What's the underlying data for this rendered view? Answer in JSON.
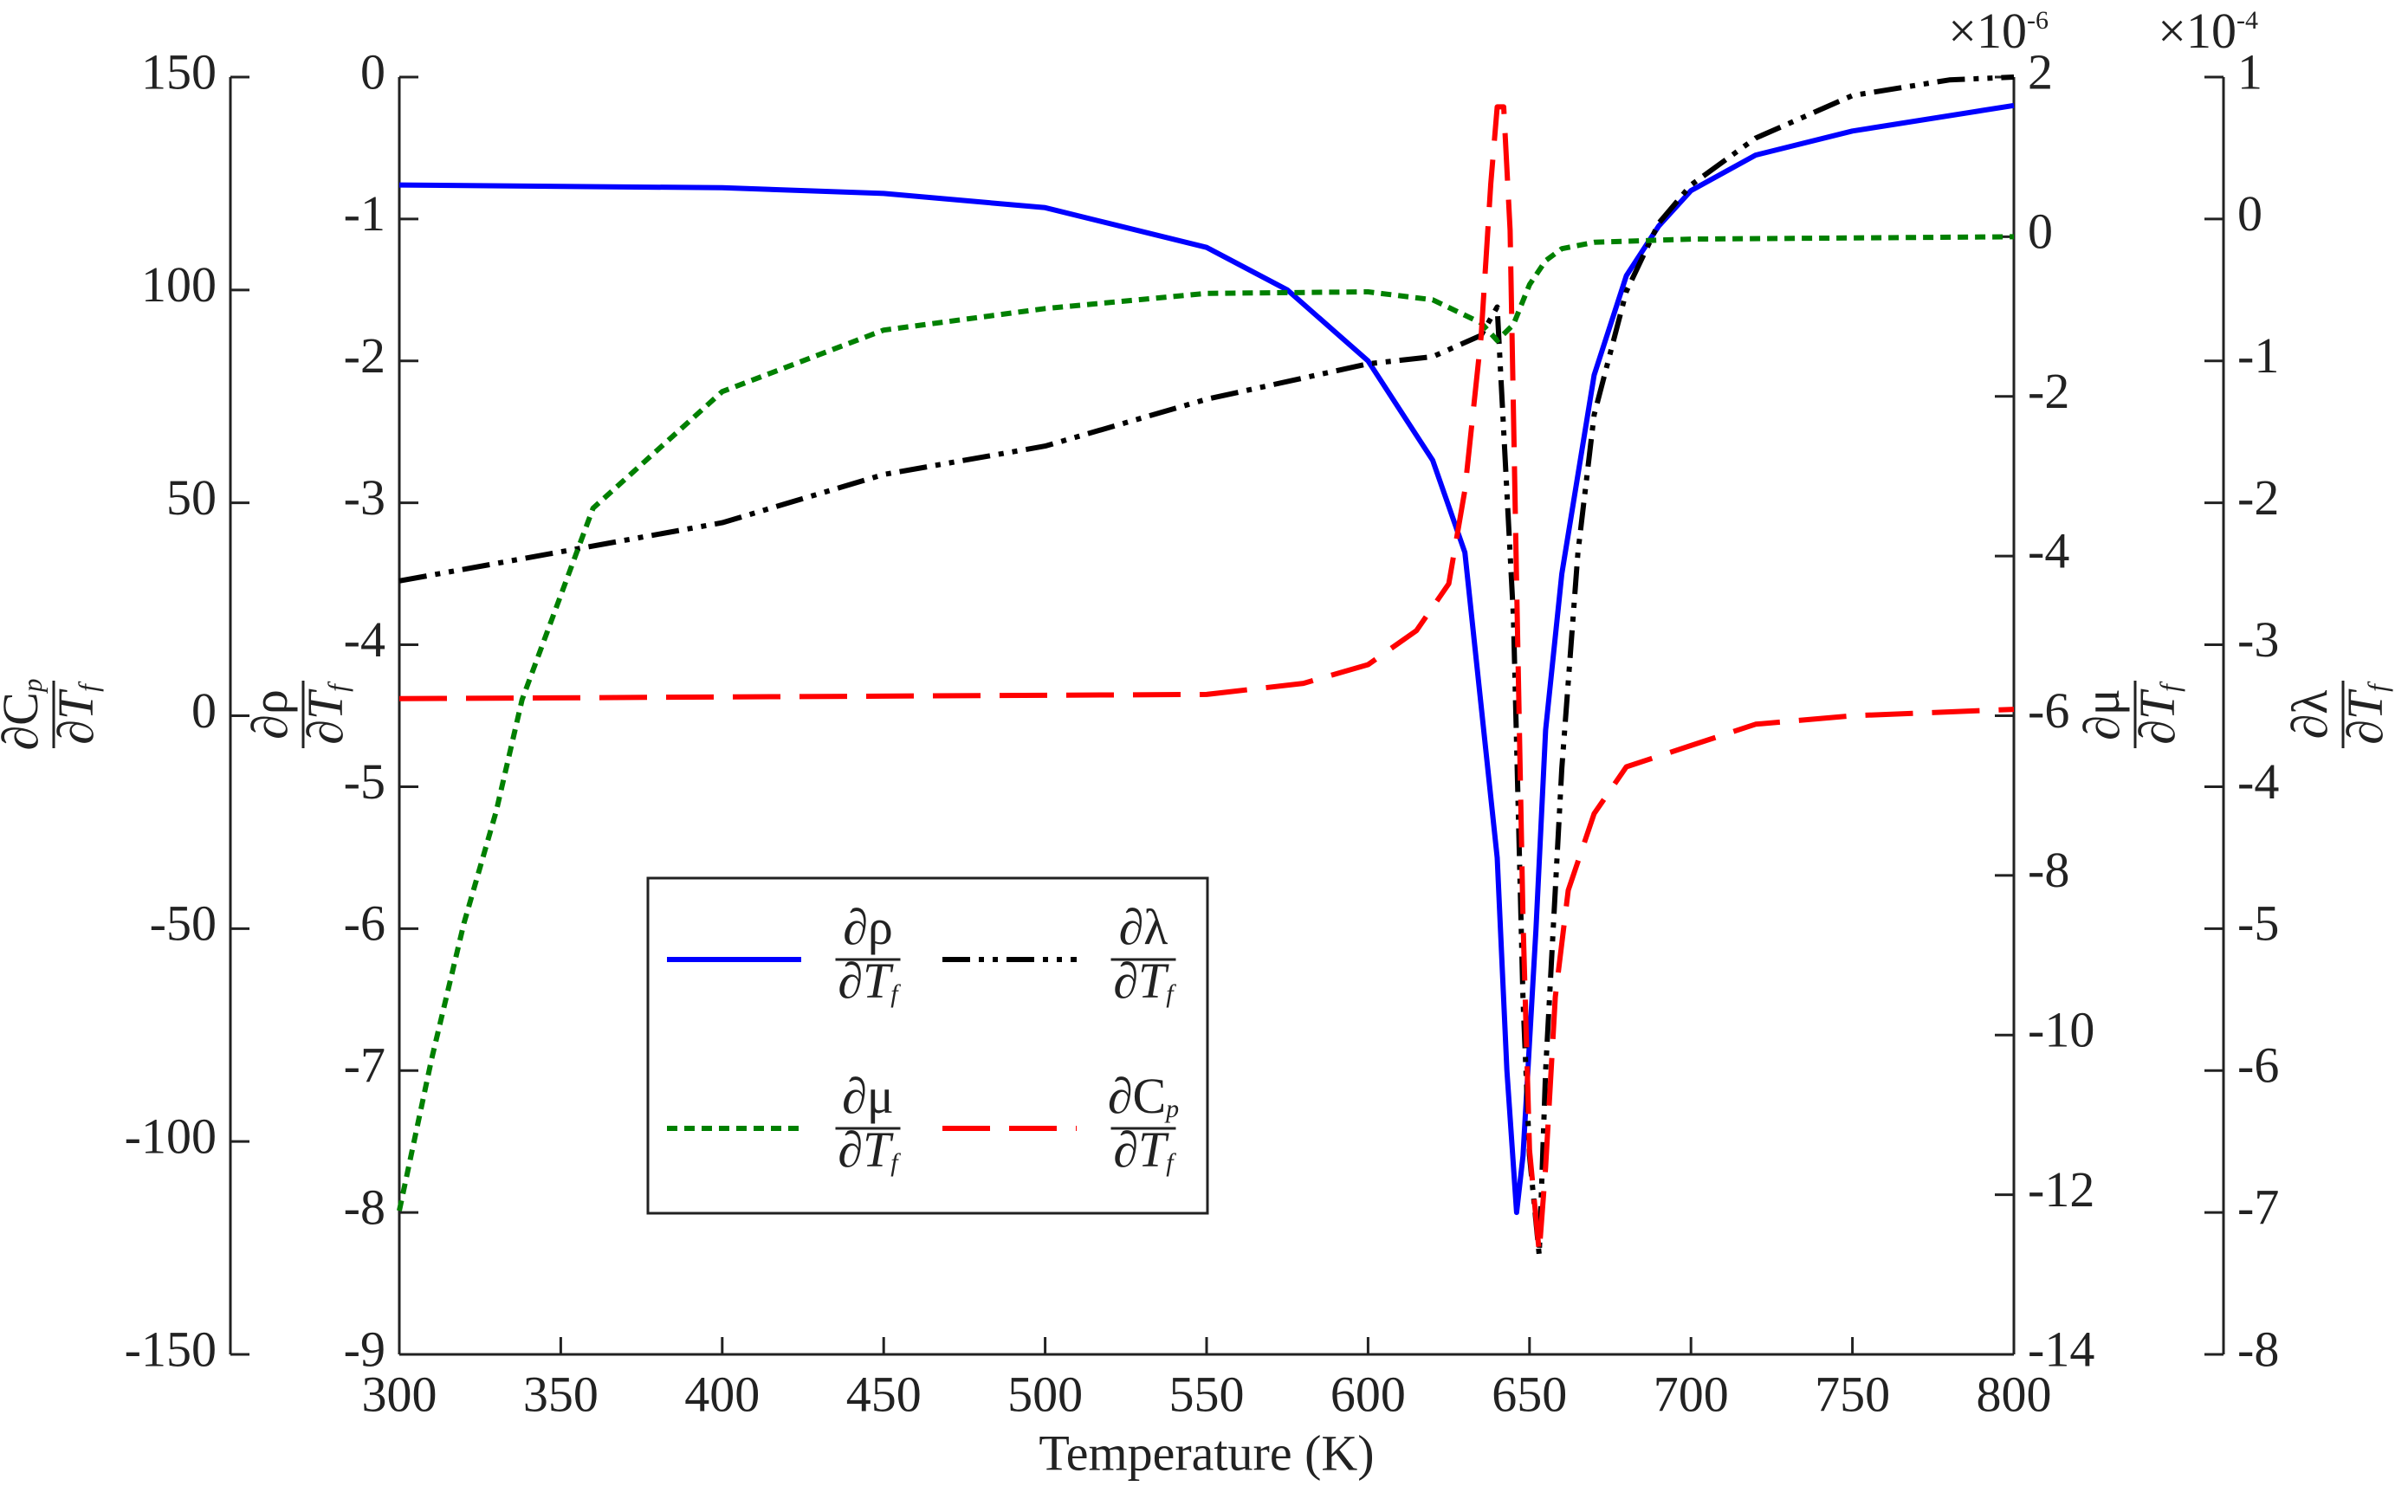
{
  "chart_data": {
    "type": "line",
    "xlabel": "Temperature (K)",
    "xlim": [
      300,
      800
    ],
    "xticks": [
      300,
      350,
      400,
      450,
      500,
      550,
      600,
      650,
      700,
      750,
      800
    ],
    "ylim": [
      -9,
      0
    ],
    "yticks": [
      -9,
      -8,
      -7,
      -6,
      -5,
      -4,
      -3,
      -2,
      -1,
      0
    ],
    "ylabel": {
      "num": "∂ρ",
      "den": "∂T",
      "den_sub": "f"
    },
    "y2lim": [
      -150,
      150
    ],
    "y2ticks": [
      -150,
      -100,
      -50,
      0,
      50,
      100,
      150
    ],
    "y2label": {
      "num": "∂C",
      "num_sub": "p",
      "den": "∂T",
      "den_sub": "f"
    },
    "y3lim": [
      -14,
      2
    ],
    "y3ticks": [
      -14,
      -12,
      -10,
      -8,
      -6,
      -4,
      -2,
      0,
      2
    ],
    "y3label": {
      "num": "∂μ",
      "den": "∂T",
      "den_sub": "f"
    },
    "y3multiplier": {
      "base": "×10",
      "exponent": "-6"
    },
    "y4lim": [
      -8,
      1
    ],
    "y4ticks": [
      -8,
      -7,
      -6,
      -5,
      -4,
      -3,
      -2,
      -1,
      0,
      1
    ],
    "y4label": {
      "num": "∂λ",
      "den": "∂T",
      "den_sub": "f"
    },
    "y4multiplier": {
      "base": "×10",
      "exponent": "-4"
    },
    "series": [
      {
        "name": {
          "num": "∂ρ",
          "den": "∂T",
          "den_sub": "f"
        },
        "color": "#0000ff",
        "dash": "solid",
        "axis": "y",
        "x": [
          300,
          400,
          450,
          500,
          550,
          575,
          600,
          620,
          630,
          640,
          643,
          646,
          648,
          650,
          652,
          655,
          660,
          670,
          680,
          690,
          700,
          720,
          750,
          800
        ],
        "values": [
          -0.76,
          -0.78,
          -0.82,
          -0.92,
          -1.2,
          -1.5,
          -2.0,
          -2.7,
          -3.35,
          -5.5,
          -7.0,
          -8.0,
          -7.6,
          -6.8,
          -6.0,
          -4.6,
          -3.5,
          -2.1,
          -1.4,
          -1.05,
          -0.8,
          -0.55,
          -0.38,
          -0.2
        ]
      },
      {
        "name": {
          "num": "∂λ",
          "den": "∂T",
          "den_sub": "f"
        },
        "color": "#000000",
        "dash": "dashdot",
        "axis": "y4",
        "x": [
          300,
          400,
          450,
          500,
          550,
          600,
          620,
          635,
          640,
          645,
          648,
          650,
          653,
          655,
          660,
          665,
          670,
          680,
          690,
          700,
          720,
          750,
          780,
          800
        ],
        "values": [
          -2.55,
          -2.14,
          -1.8,
          -1.6,
          -1.27,
          -1.02,
          -0.97,
          -0.82,
          -0.62,
          -2.8,
          -5.5,
          -6.6,
          -7.3,
          -6.0,
          -3.87,
          -2.35,
          -1.38,
          -0.51,
          -0.03,
          0.24,
          0.57,
          0.87,
          0.98,
          1.0
        ]
      },
      {
        "name": {
          "num": "∂μ",
          "den": "∂T",
          "den_sub": "f"
        },
        "color": "#008000",
        "dash": "dotted",
        "axis": "y3",
        "x": [
          300,
          310,
          320,
          330,
          338,
          360,
          400,
          450,
          500,
          550,
          600,
          620,
          635,
          640,
          645,
          650,
          655,
          660,
          670,
          700,
          800
        ],
        "values": [
          -12.2,
          -10.3,
          -8.6,
          -7.2,
          -5.8,
          -3.4,
          -1.94,
          -1.17,
          -0.9,
          -0.71,
          -0.69,
          -0.79,
          -1.08,
          -1.3,
          -1.1,
          -0.6,
          -0.3,
          -0.15,
          -0.07,
          -0.03,
          0
        ]
      },
      {
        "name": {
          "num": "∂C",
          "num_sub": "p",
          "den": "∂T",
          "den_sub": "f"
        },
        "color": "#ff0000",
        "dash": "dashed",
        "axis": "y2",
        "x": [
          300,
          550,
          580,
          600,
          615,
          625,
          630,
          635,
          638,
          640,
          642,
          644,
          646,
          648,
          650,
          653,
          655,
          658,
          662,
          670,
          680,
          700,
          720,
          750,
          800
        ],
        "values": [
          4,
          5,
          7.6,
          12,
          20,
          31,
          53,
          89,
          125,
          143,
          143,
          114,
          31,
          -48,
          -102,
          -126,
          -106,
          -66,
          -41,
          -23,
          -12,
          -7,
          -2,
          0,
          1.5
        ]
      }
    ]
  }
}
